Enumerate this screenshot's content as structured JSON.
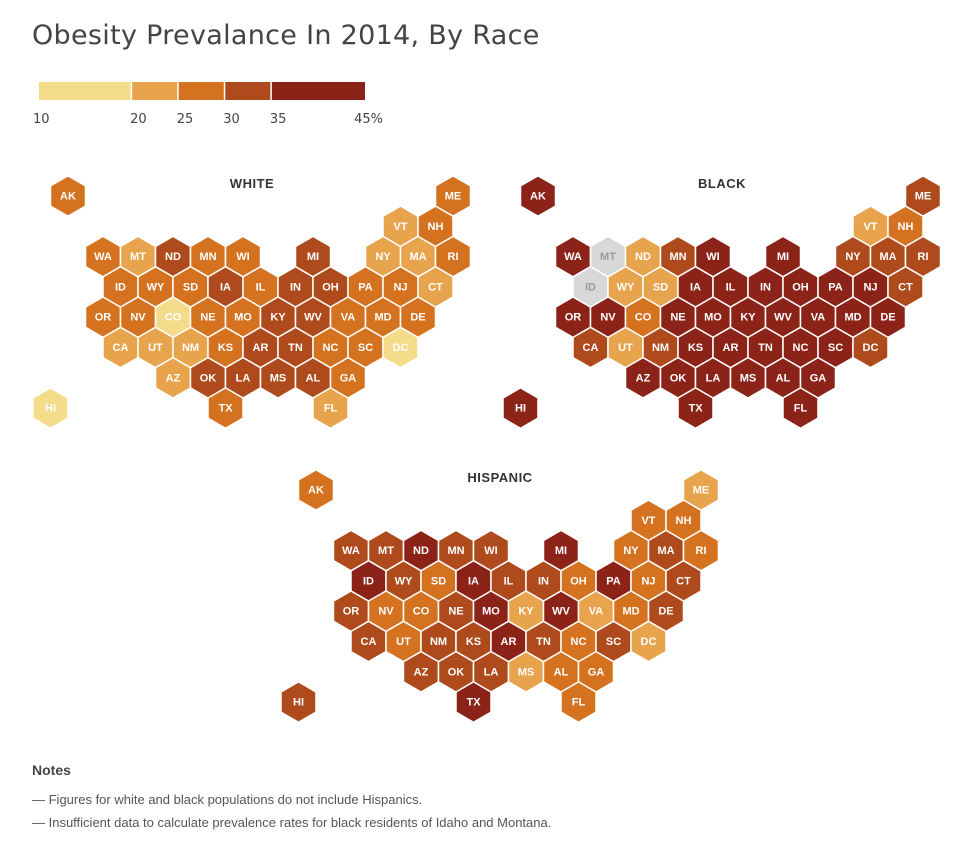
{
  "title": "Obesity Prevalance In 2014, By Race",
  "legend": {
    "ticks": [
      10,
      20,
      25,
      30,
      35,
      45
    ],
    "tick_labels": [
      "10",
      "20",
      "25",
      "30",
      "35",
      "45%"
    ],
    "bins": [
      {
        "range": "10-20",
        "color": "#f4dc8b"
      },
      {
        "range": "20-25",
        "color": "#e8a44c"
      },
      {
        "range": "25-30",
        "color": "#d4721f"
      },
      {
        "range": "30-35",
        "color": "#ae4a1c"
      },
      {
        "range": "35-45",
        "color": "#8c2318"
      }
    ],
    "no_data_color": "#d8d8d8"
  },
  "maps": [
    {
      "title": "WHITE",
      "bins": {
        "AK": 3,
        "ME": 3,
        "VT": 2,
        "NH": 3,
        "WA": 3,
        "MT": 2,
        "ND": 4,
        "MN": 3,
        "WI": 3,
        "MI": 4,
        "NY": 2,
        "MA": 2,
        "RI": 3,
        "ID": 3,
        "WY": 3,
        "SD": 3,
        "IA": 4,
        "IL": 3,
        "IN": 4,
        "OH": 4,
        "PA": 3,
        "NJ": 3,
        "CT": 2,
        "OR": 3,
        "NV": 3,
        "CO": 1,
        "NE": 3,
        "MO": 3,
        "KY": 4,
        "WV": 4,
        "VA": 3,
        "MD": 3,
        "DE": 3,
        "CA": 2,
        "UT": 2,
        "NM": 2,
        "KS": 3,
        "AR": 4,
        "TN": 4,
        "NC": 3,
        "SC": 3,
        "DC": 1,
        "AZ": 2,
        "OK": 4,
        "LA": 4,
        "MS": 4,
        "AL": 4,
        "GA": 3,
        "HI": 1,
        "TX": 3,
        "FL": 2
      }
    },
    {
      "title": "BLACK",
      "bins": {
        "AK": 5,
        "ME": 4,
        "VT": 2,
        "NH": 3,
        "WA": 5,
        "MT": 0,
        "ND": 2,
        "MN": 4,
        "WI": 5,
        "MI": 5,
        "NY": 4,
        "MA": 4,
        "RI": 4,
        "ID": 0,
        "WY": 2,
        "SD": 2,
        "IA": 5,
        "IL": 5,
        "IN": 5,
        "OH": 5,
        "PA": 5,
        "NJ": 5,
        "CT": 4,
        "OR": 5,
        "NV": 5,
        "CO": 3,
        "NE": 5,
        "MO": 5,
        "KY": 5,
        "WV": 5,
        "VA": 5,
        "MD": 5,
        "DE": 5,
        "CA": 4,
        "UT": 2,
        "NM": 4,
        "KS": 5,
        "AR": 5,
        "TN": 5,
        "NC": 5,
        "SC": 5,
        "DC": 4,
        "AZ": 5,
        "OK": 5,
        "LA": 5,
        "MS": 5,
        "AL": 5,
        "GA": 5,
        "HI": 5,
        "TX": 5,
        "FL": 5
      }
    },
    {
      "title": "HISPANIC",
      "bins": {
        "AK": 3,
        "ME": 2,
        "VT": 3,
        "NH": 3,
        "WA": 4,
        "MT": 4,
        "ND": 5,
        "MN": 4,
        "WI": 4,
        "MI": 5,
        "NY": 3,
        "MA": 4,
        "RI": 3,
        "ID": 5,
        "WY": 4,
        "SD": 3,
        "IA": 5,
        "IL": 4,
        "IN": 4,
        "OH": 3,
        "PA": 5,
        "NJ": 3,
        "CT": 4,
        "OR": 4,
        "NV": 3,
        "CO": 3,
        "NE": 4,
        "MO": 5,
        "KY": 2,
        "WV": 5,
        "VA": 2,
        "MD": 3,
        "DE": 4,
        "CA": 4,
        "UT": 3,
        "NM": 4,
        "KS": 4,
        "AR": 5,
        "TN": 4,
        "NC": 3,
        "SC": 4,
        "DC": 2,
        "AZ": 4,
        "OK": 4,
        "LA": 4,
        "MS": 2,
        "AL": 3,
        "GA": 3,
        "HI": 4,
        "TX": 5,
        "FL": 3
      }
    }
  ],
  "notes": {
    "title": "Notes",
    "items": [
      "— Figures for white and black populations do not include Hispanics.",
      "— Insufficient data to calculate prevalence rates for black residents of Idaho and Montana."
    ]
  }
}
